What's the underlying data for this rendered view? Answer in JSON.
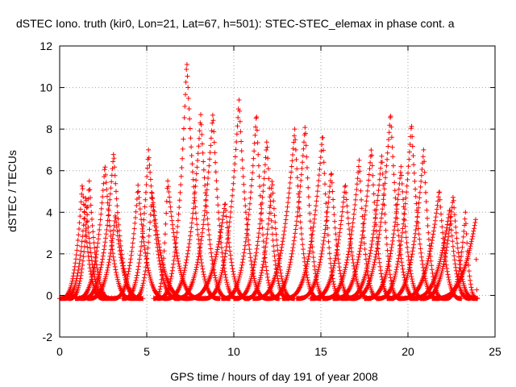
{
  "chart_data": {
    "type": "scatter",
    "title": "dSTEC Iono. truth (kir0, Lon=21, Lat=67, h=501): STEC-STEC_elemax in phase cont. a",
    "xlabel": "GPS time / hours of day 191 of year 2008",
    "ylabel": "dSTEC  / TECUs",
    "xlim": [
      0,
      25
    ],
    "ylim": [
      -2,
      12
    ],
    "xticks": [
      "0",
      "5",
      "10",
      "15",
      "20",
      "25"
    ],
    "yticks": [
      "-2",
      "0",
      "2",
      "4",
      "6",
      "8",
      "10",
      "12"
    ],
    "grid": true,
    "marker": "+",
    "color": "#ff0000",
    "arcs": [
      {
        "start": 0.0,
        "peak_time": 1.3,
        "peak": 5.4,
        "end": 2.6
      },
      {
        "start": 0.2,
        "peak_time": 1.5,
        "peak": 4.8,
        "end": 2.8
      },
      {
        "start": 0.5,
        "peak_time": 1.7,
        "peak": 5.5,
        "end": 3.0
      },
      {
        "start": 0.9,
        "peak_time": 2.6,
        "peak": 6.3,
        "end": 4.2
      },
      {
        "start": 1.2,
        "peak_time": 3.1,
        "peak": 6.9,
        "end": 4.6
      },
      {
        "start": 1.6,
        "peak_time": 3.2,
        "peak": 3.9,
        "end": 4.8
      },
      {
        "start": 3.0,
        "peak_time": 4.5,
        "peak": 5.3,
        "end": 6.2
      },
      {
        "start": 3.6,
        "peak_time": 5.1,
        "peak": 7.0,
        "end": 6.9
      },
      {
        "start": 4.2,
        "peak_time": 5.3,
        "peak": 5.0,
        "end": 7.4
      },
      {
        "start": 5.4,
        "peak_time": 6.2,
        "peak": 5.6,
        "end": 8.2
      },
      {
        "start": 5.6,
        "peak_time": 7.3,
        "peak": 11.3,
        "end": 9.2
      },
      {
        "start": 6.0,
        "peak_time": 8.1,
        "peak": 8.7,
        "end": 9.8
      },
      {
        "start": 6.6,
        "peak_time": 8.8,
        "peak": 8.8,
        "end": 10.3
      },
      {
        "start": 7.2,
        "peak_time": 9.5,
        "peak": 4.5,
        "end": 10.9
      },
      {
        "start": 8.2,
        "peak_time": 10.3,
        "peak": 9.4,
        "end": 12.0
      },
      {
        "start": 9.3,
        "peak_time": 11.3,
        "peak": 8.8,
        "end": 12.6
      },
      {
        "start": 10.0,
        "peak_time": 11.9,
        "peak": 7.5,
        "end": 13.2
      },
      {
        "start": 10.6,
        "peak_time": 12.2,
        "peak": 5.6,
        "end": 13.5
      },
      {
        "start": 11.1,
        "peak_time": 13.5,
        "peak": 8.0,
        "end": 15.0
      },
      {
        "start": 11.9,
        "peak_time": 14.1,
        "peak": 8.2,
        "end": 15.4
      },
      {
        "start": 12.8,
        "peak_time": 15.1,
        "peak": 7.8,
        "end": 16.3
      },
      {
        "start": 13.6,
        "peak_time": 15.6,
        "peak": 6.0,
        "end": 16.9
      },
      {
        "start": 14.4,
        "peak_time": 16.4,
        "peak": 5.4,
        "end": 17.9
      },
      {
        "start": 15.1,
        "peak_time": 17.2,
        "peak": 6.5,
        "end": 18.4
      },
      {
        "start": 15.7,
        "peak_time": 17.9,
        "peak": 7.1,
        "end": 19.2
      },
      {
        "start": 16.3,
        "peak_time": 18.5,
        "peak": 6.8,
        "end": 19.6
      },
      {
        "start": 16.7,
        "peak_time": 19.0,
        "peak": 8.8,
        "end": 20.6
      },
      {
        "start": 17.5,
        "peak_time": 19.6,
        "peak": 6.2,
        "end": 21.0
      },
      {
        "start": 18.2,
        "peak_time": 20.2,
        "peak": 8.3,
        "end": 21.8
      },
      {
        "start": 18.8,
        "peak_time": 20.9,
        "peak": 7.0,
        "end": 22.1
      },
      {
        "start": 19.5,
        "peak_time": 21.8,
        "peak": 5.1,
        "end": 23.1
      },
      {
        "start": 20.1,
        "peak_time": 22.4,
        "peak": 4.2,
        "end": 23.6
      },
      {
        "start": 20.7,
        "peak_time": 22.6,
        "peak": 4.8,
        "end": 23.9
      },
      {
        "start": 21.4,
        "peak_time": 23.9,
        "peak": 3.7,
        "end": 24.0
      },
      {
        "start": 22.1,
        "peak_time": 23.3,
        "peak": 4.0,
        "end": 24.0
      }
    ]
  }
}
